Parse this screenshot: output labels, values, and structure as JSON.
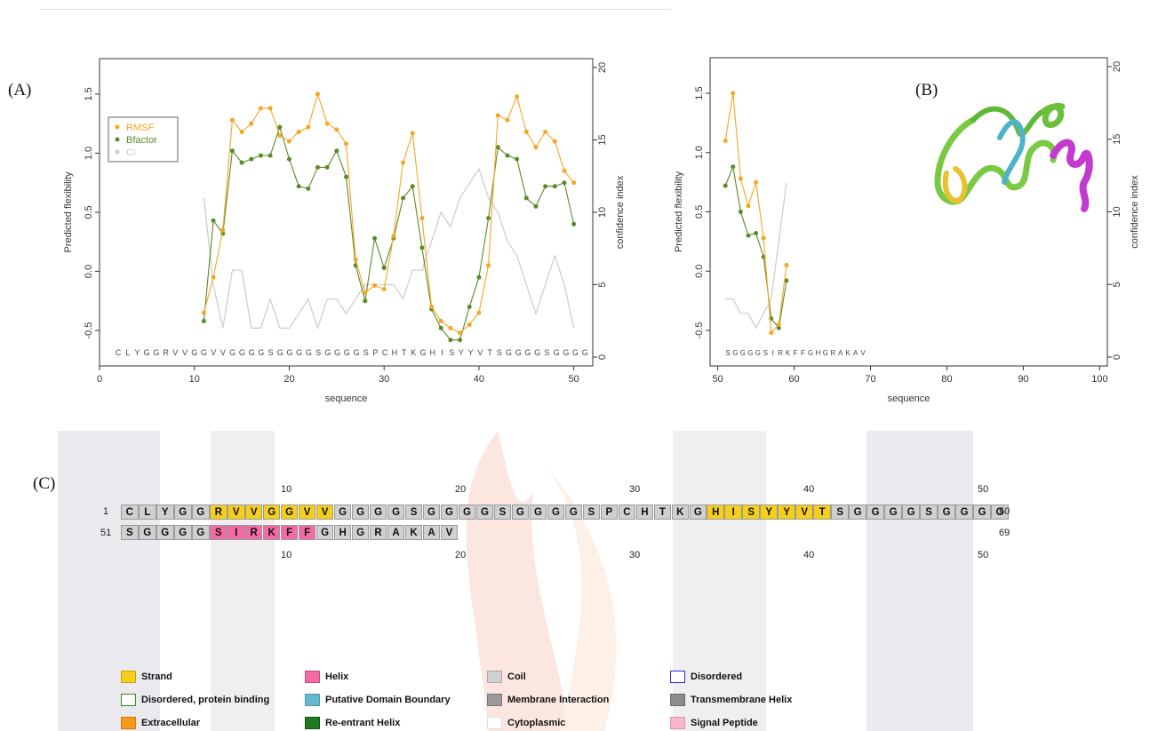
{
  "labels": {
    "a": "(A)",
    "b": "(B)",
    "c": "(C)"
  },
  "chart_data": [
    {
      "type": "line",
      "panel": "A",
      "xlabel": "sequence",
      "ylabel": "Predicted flexibility",
      "ylabel_right": "confidence index",
      "xlim": [
        0,
        52
      ],
      "ylim": [
        -0.8,
        1.8
      ],
      "yticks": [
        "-0.5",
        "0.0",
        "0.5",
        "1.0",
        "1.5"
      ],
      "yticks_right": [
        "0",
        "5",
        "10",
        "15",
        "20"
      ],
      "xticks": [
        "0",
        "10",
        "20",
        "30",
        "40",
        "50"
      ],
      "legend": [
        "RMSF",
        "Bfactor",
        "Ci"
      ],
      "sequence_text": "C L Y G G R V V G G V V G G G G S G G G G S G G G G S P C H T K G H I S Y Y V T S G G G G S G G G G",
      "x": [
        11,
        12,
        13,
        14,
        15,
        16,
        17,
        18,
        19,
        20,
        21,
        22,
        23,
        24,
        25,
        26,
        27,
        28,
        29,
        30,
        31,
        32,
        33,
        34,
        35,
        36,
        37,
        38,
        39,
        40,
        41,
        42,
        43,
        44,
        45,
        46,
        47,
        48,
        49,
        50
      ],
      "series": [
        {
          "name": "RMSF",
          "color": "#f5a623",
          "values": [
            -0.35,
            -0.05,
            0.35,
            1.28,
            1.18,
            1.25,
            1.38,
            1.38,
            1.15,
            1.1,
            1.18,
            1.22,
            1.5,
            1.25,
            1.2,
            1.08,
            0.1,
            -0.18,
            -0.12,
            -0.15,
            0.3,
            0.92,
            1.17,
            0.45,
            -0.3,
            -0.42,
            -0.48,
            -0.52,
            -0.45,
            -0.35,
            0.05,
            1.32,
            1.28,
            1.48,
            1.18,
            1.05,
            1.18,
            1.1,
            0.85,
            0.75
          ]
        },
        {
          "name": "Bfactor",
          "color": "#5a8a2a",
          "values": [
            -0.42,
            0.43,
            0.32,
            1.02,
            0.92,
            0.95,
            0.98,
            0.98,
            1.22,
            0.95,
            0.72,
            0.7,
            0.88,
            0.88,
            1.02,
            0.8,
            0.05,
            -0.25,
            0.28,
            0.03,
            0.28,
            0.62,
            0.72,
            0.2,
            -0.32,
            -0.48,
            -0.58,
            -0.58,
            -0.3,
            -0.05,
            0.45,
            1.05,
            0.98,
            0.95,
            0.62,
            0.55,
            0.72,
            0.72,
            0.75,
            0.4
          ]
        },
        {
          "name": "Ci",
          "color": "#cccccc",
          "values": [
            11,
            5,
            2,
            6,
            6,
            2,
            2,
            4,
            2,
            2,
            3,
            4,
            2,
            4,
            4,
            3,
            4,
            5,
            5,
            5,
            5,
            4,
            6,
            6,
            8,
            10,
            9,
            11,
            12,
            13,
            11,
            10,
            8,
            7,
            5,
            3,
            5,
            7,
            5,
            2
          ]
        }
      ]
    },
    {
      "type": "line",
      "panel": "B",
      "xlabel": "sequence",
      "ylabel": "Predicted flexibility",
      "ylabel_right": "confidence index",
      "xlim": [
        49,
        101
      ],
      "ylim": [
        -0.8,
        1.8
      ],
      "yticks": [
        "-0.5",
        "0.0",
        "0.5",
        "1.0",
        "1.5"
      ],
      "yticks_right": [
        "0",
        "5",
        "10",
        "15",
        "20"
      ],
      "xticks": [
        "50",
        "60",
        "70",
        "80",
        "90",
        "100"
      ],
      "sequence_text": "S G G G G S I R K F F G H G R A K A V",
      "x": [
        51,
        52,
        53,
        54,
        55,
        56,
        57,
        58,
        59
      ],
      "series": [
        {
          "name": "RMSF",
          "color": "#f5a623",
          "values": [
            1.1,
            1.5,
            0.78,
            0.55,
            0.75,
            0.28,
            -0.52,
            -0.45,
            0.05
          ]
        },
        {
          "name": "Bfactor",
          "color": "#5a8a2a",
          "values": [
            0.72,
            0.88,
            0.5,
            0.3,
            0.32,
            0.12,
            -0.4,
            -0.48,
            -0.08
          ]
        },
        {
          "name": "Ci",
          "color": "#cccccc",
          "values": [
            4,
            4,
            3,
            3,
            2,
            3,
            4,
            8,
            12
          ]
        }
      ]
    }
  ],
  "sequence_panel": {
    "row1": {
      "start": "1",
      "end": "50",
      "residues": [
        "C",
        "L",
        "Y",
        "G",
        "G",
        "R",
        "V",
        "V",
        "G",
        "G",
        "V",
        "V",
        "G",
        "G",
        "G",
        "G",
        "S",
        "G",
        "G",
        "G",
        "G",
        "S",
        "G",
        "G",
        "G",
        "G",
        "S",
        "P",
        "C",
        "H",
        "T",
        "K",
        "G",
        "H",
        "I",
        "S",
        "Y",
        "Y",
        "V",
        "T",
        "S",
        "G",
        "G",
        "G",
        "G",
        "S",
        "G",
        "G",
        "G",
        "G"
      ],
      "ss": [
        "C",
        "C",
        "C",
        "C",
        "C",
        "E",
        "E",
        "E",
        "E",
        "E",
        "E",
        "E",
        "C",
        "C",
        "C",
        "C",
        "C",
        "C",
        "C",
        "C",
        "C",
        "C",
        "C",
        "C",
        "C",
        "C",
        "C",
        "C",
        "C",
        "C",
        "C",
        "C",
        "C",
        "E",
        "E",
        "E",
        "E",
        "E",
        "E",
        "E",
        "C",
        "C",
        "C",
        "C",
        "C",
        "C",
        "C",
        "C",
        "C",
        "C"
      ]
    },
    "row2": {
      "start": "51",
      "end": "69",
      "residues": [
        "S",
        "G",
        "G",
        "G",
        "G",
        "S",
        "I",
        "R",
        "K",
        "F",
        "F",
        "G",
        "H",
        "G",
        "R",
        "A",
        "K",
        "A",
        "V"
      ],
      "ss": [
        "C",
        "C",
        "C",
        "C",
        "C",
        "H",
        "H",
        "H",
        "H",
        "H",
        "H",
        "C",
        "C",
        "C",
        "C",
        "C",
        "C",
        "C",
        "C"
      ]
    },
    "ruler": [
      "10",
      "20",
      "30",
      "40",
      "50"
    ]
  },
  "legend": [
    {
      "label": "Strand",
      "fill": "#f6cf1a",
      "border": "#c9a400"
    },
    {
      "label": "Helix",
      "fill": "#f46aa4",
      "border": "#c94a80"
    },
    {
      "label": "Coil",
      "fill": "#d0d0d0",
      "border": "#aaaaaa"
    },
    {
      "label": "Disordered",
      "fill": "#ffffff",
      "border": "#2b2bd8"
    },
    {
      "label": "Disordered, protein binding",
      "fill": "#ffffff",
      "border": "#2e8b2e"
    },
    {
      "label": "Putative Domain Boundary",
      "fill": "#66b8cc",
      "border": "#4a9ab0"
    },
    {
      "label": "Membrane Interaction",
      "fill": "#9a9a9a",
      "border": "#7a7a7a"
    },
    {
      "label": "Transmembrane Helix",
      "fill": "#8c8c8c",
      "border": "#6a6a6a"
    },
    {
      "label": "Extracellular",
      "fill": "#f59a1c",
      "border": "#d07a00"
    },
    {
      "label": "Re-entrant Helix",
      "fill": "#1f7a1f",
      "border": "#145214"
    },
    {
      "label": "Cytoplasmic",
      "fill": "#ffffff",
      "border": "#dddddd"
    },
    {
      "label": "Signal Peptide",
      "fill": "#f7b8cf",
      "border": "#e090b0"
    }
  ]
}
